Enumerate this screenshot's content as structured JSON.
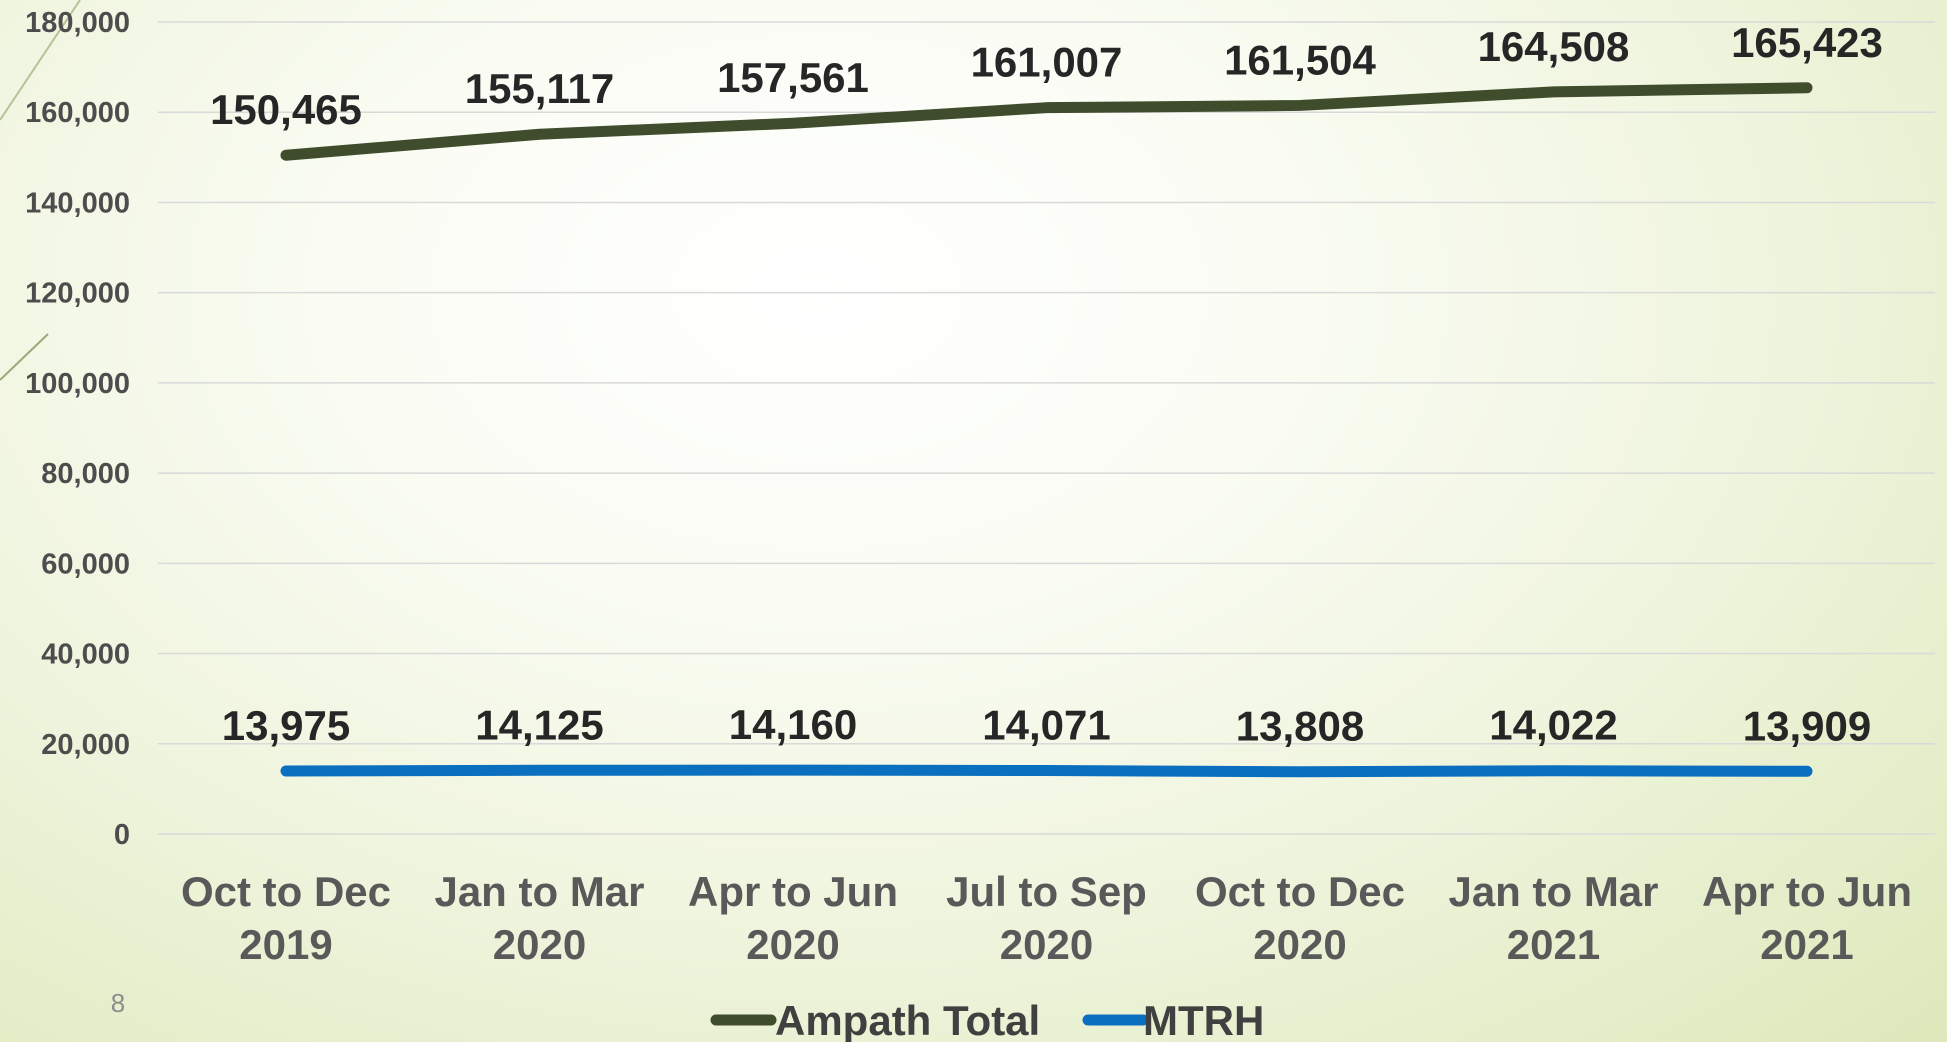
{
  "slide_number": "8",
  "chart_data": {
    "type": "line",
    "categories": [
      [
        "Oct to Dec",
        "2019"
      ],
      [
        "Jan to Mar",
        "2020"
      ],
      [
        "Apr to Jun",
        "2020"
      ],
      [
        "Jul to Sep",
        "2020"
      ],
      [
        "Oct to Dec",
        "2020"
      ],
      [
        "Jan to Mar",
        "2021"
      ],
      [
        "Apr to Jun",
        "2021"
      ]
    ],
    "series": [
      {
        "name": "Ampath Total",
        "color": "#3f4d2c",
        "values": [
          150465,
          155117,
          157561,
          161007,
          161504,
          164508,
          165423
        ],
        "labels": [
          "150,465",
          "155,117",
          "157,561",
          "161,007",
          "161,504",
          "164,508",
          "165,423"
        ]
      },
      {
        "name": "MTRH",
        "color": "#0a6fbf",
        "values": [
          13975,
          14125,
          14160,
          14071,
          13808,
          14022,
          13909
        ],
        "labels": [
          "13,975",
          "14,125",
          "14,160",
          "14,071",
          "13,808",
          "14,022",
          "13,909"
        ]
      }
    ],
    "ylim": [
      0,
      180000
    ],
    "yticks": [
      "0",
      "20,000",
      "40,000",
      "60,000",
      "80,000",
      "100,000",
      "120,000",
      "140,000",
      "160,000",
      "180,000"
    ],
    "grid": true,
    "legend": "bottom",
    "xlabel": "",
    "ylabel": "",
    "title": ""
  }
}
